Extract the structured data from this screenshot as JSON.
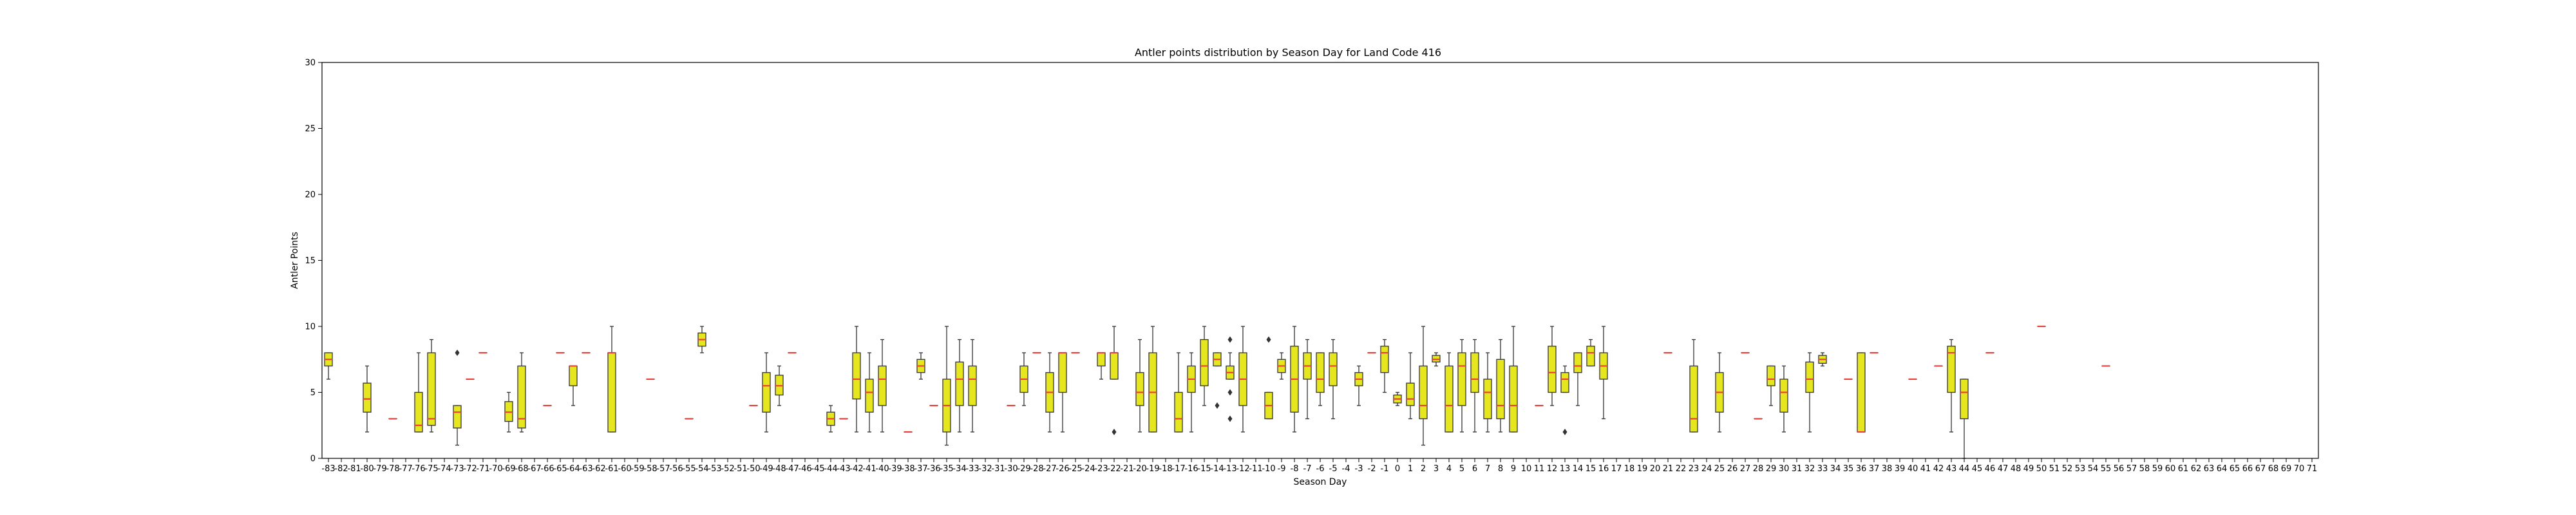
{
  "chart_data": {
    "type": "box",
    "title": "Antler points distribution by Season Day for Land Code 416",
    "xlabel": "Season Day",
    "ylabel": "Antler Points",
    "ylim": [
      0,
      30
    ],
    "yticks": [
      0,
      5,
      10,
      15,
      20,
      25,
      30
    ],
    "grid": false,
    "box_color": "#e6e61f",
    "median_color": "#e8413c",
    "edge_color": "#333333",
    "categories": [
      -83,
      -82,
      -81,
      -80,
      -79,
      -78,
      -77,
      -76,
      -75,
      -74,
      -73,
      -72,
      -71,
      -70,
      -69,
      -68,
      -67,
      -66,
      -65,
      -64,
      -63,
      -62,
      -61,
      -60,
      -59,
      -58,
      -57,
      -56,
      -55,
      -54,
      -53,
      -52,
      -51,
      -50,
      -49,
      -48,
      -47,
      -46,
      -45,
      -44,
      -43,
      -42,
      -41,
      -40,
      -39,
      -38,
      -37,
      -36,
      -35,
      -34,
      -33,
      -32,
      -31,
      -30,
      -29,
      -28,
      -27,
      -26,
      -25,
      -24,
      -23,
      -22,
      -21,
      -20,
      -19,
      -18,
      -17,
      -16,
      -15,
      -14,
      -13,
      -12,
      -11,
      -10,
      -9,
      -8,
      -7,
      -6,
      -5,
      -4,
      -3,
      -2,
      -1,
      0,
      1,
      2,
      3,
      4,
      5,
      6,
      7,
      8,
      9,
      10,
      11,
      12,
      13,
      14,
      15,
      16,
      17,
      18,
      19,
      20,
      21,
      22,
      23,
      24,
      25,
      26,
      27,
      28,
      29,
      30,
      31,
      32,
      33,
      34,
      35,
      36,
      37,
      38,
      39,
      40,
      41,
      42,
      43,
      44,
      45,
      46,
      47,
      48,
      49,
      50,
      51,
      52,
      53,
      54,
      55,
      56,
      57,
      58,
      59,
      60,
      61,
      62,
      63,
      64,
      65,
      66,
      67,
      68,
      69,
      70,
      71
    ],
    "boxes": [
      {
        "day": -83,
        "min": 6,
        "q1": 7,
        "median": 7.5,
        "q3": 8,
        "max": 8
      },
      {
        "day": -80,
        "min": 2,
        "q1": 3.5,
        "median": 4.5,
        "q3": 5.7,
        "max": 7
      },
      {
        "day": -78,
        "min": 3,
        "q1": 3,
        "median": 3,
        "q3": 3,
        "max": 3
      },
      {
        "day": -76,
        "min": 2,
        "q1": 2,
        "median": 2.5,
        "q3": 5,
        "max": 8
      },
      {
        "day": -75,
        "min": 2,
        "q1": 2.5,
        "median": 3,
        "q3": 8,
        "max": 9
      },
      {
        "day": -73,
        "min": 1,
        "q1": 2.3,
        "median": 3.5,
        "q3": 4,
        "max": 4,
        "outliers": [
          8
        ]
      },
      {
        "day": -72,
        "min": 6,
        "q1": 6,
        "median": 6,
        "q3": 6,
        "max": 6
      },
      {
        "day": -71,
        "min": 8,
        "q1": 8,
        "median": 8,
        "q3": 8,
        "max": 8
      },
      {
        "day": -69,
        "min": 2,
        "q1": 2.8,
        "median": 3.5,
        "q3": 4.3,
        "max": 5
      },
      {
        "day": -68,
        "min": 2,
        "q1": 2.3,
        "median": 3,
        "q3": 7,
        "max": 8
      },
      {
        "day": -66,
        "min": 4,
        "q1": 4,
        "median": 4,
        "q3": 4,
        "max": 4
      },
      {
        "day": -65,
        "min": 8,
        "q1": 8,
        "median": 8,
        "q3": 8,
        "max": 8
      },
      {
        "day": -64,
        "min": 4,
        "q1": 5.5,
        "median": 7,
        "q3": 7,
        "max": 7
      },
      {
        "day": -63,
        "min": 8,
        "q1": 8,
        "median": 8,
        "q3": 8,
        "max": 8
      },
      {
        "day": -61,
        "min": 2,
        "q1": 2,
        "median": 8,
        "q3": 8,
        "max": 10
      },
      {
        "day": -58,
        "min": 6,
        "q1": 6,
        "median": 6,
        "q3": 6,
        "max": 6
      },
      {
        "day": -55,
        "min": 3,
        "q1": 3,
        "median": 3,
        "q3": 3,
        "max": 3
      },
      {
        "day": -54,
        "min": 8,
        "q1": 8.5,
        "median": 9,
        "q3": 9.5,
        "max": 10
      },
      {
        "day": -50,
        "min": 4,
        "q1": 4,
        "median": 4,
        "q3": 4,
        "max": 4
      },
      {
        "day": -49,
        "min": 2,
        "q1": 3.5,
        "median": 5.5,
        "q3": 6.5,
        "max": 8
      },
      {
        "day": -48,
        "min": 4,
        "q1": 4.8,
        "median": 5.5,
        "q3": 6.3,
        "max": 7
      },
      {
        "day": -47,
        "min": 8,
        "q1": 8,
        "median": 8,
        "q3": 8,
        "max": 8
      },
      {
        "day": -44,
        "min": 2,
        "q1": 2.5,
        "median": 3,
        "q3": 3.5,
        "max": 4
      },
      {
        "day": -43,
        "min": 3,
        "q1": 3,
        "median": 3,
        "q3": 3,
        "max": 3
      },
      {
        "day": -42,
        "min": 2,
        "q1": 4.5,
        "median": 6,
        "q3": 8,
        "max": 10
      },
      {
        "day": -41,
        "min": 2,
        "q1": 3.5,
        "median": 5,
        "q3": 6,
        "max": 8
      },
      {
        "day": -40,
        "min": 2,
        "q1": 4,
        "median": 6,
        "q3": 7,
        "max": 9
      },
      {
        "day": -38,
        "min": 2,
        "q1": 2,
        "median": 2,
        "q3": 2,
        "max": 2
      },
      {
        "day": -37,
        "min": 6,
        "q1": 6.5,
        "median": 7,
        "q3": 7.5,
        "max": 8
      },
      {
        "day": -36,
        "min": 4,
        "q1": 4,
        "median": 4,
        "q3": 4,
        "max": 4
      },
      {
        "day": -35,
        "min": 1,
        "q1": 2,
        "median": 4,
        "q3": 6,
        "max": 10
      },
      {
        "day": -34,
        "min": 2,
        "q1": 4,
        "median": 6,
        "q3": 7.3,
        "max": 9
      },
      {
        "day": -33,
        "min": 2,
        "q1": 4,
        "median": 6,
        "q3": 7,
        "max": 9
      },
      {
        "day": -30,
        "min": 4,
        "q1": 4,
        "median": 4,
        "q3": 4,
        "max": 4
      },
      {
        "day": -29,
        "min": 4,
        "q1": 5,
        "median": 6,
        "q3": 7,
        "max": 8
      },
      {
        "day": -28,
        "min": 8,
        "q1": 8,
        "median": 8,
        "q3": 8,
        "max": 8
      },
      {
        "day": -27,
        "min": 2,
        "q1": 3.5,
        "median": 5,
        "q3": 6.5,
        "max": 8
      },
      {
        "day": -26,
        "min": 2,
        "q1": 5,
        "median": 8,
        "q3": 8,
        "max": 8
      },
      {
        "day": -25,
        "min": 8,
        "q1": 8,
        "median": 8,
        "q3": 8,
        "max": 8
      },
      {
        "day": -23,
        "min": 6,
        "q1": 7,
        "median": 8,
        "q3": 8,
        "max": 8
      },
      {
        "day": -22,
        "min": 6,
        "q1": 6,
        "median": 8,
        "q3": 8,
        "max": 10,
        "outliers": [
          2
        ]
      },
      {
        "day": -20,
        "min": 2,
        "q1": 4,
        "median": 5,
        "q3": 6.5,
        "max": 9
      },
      {
        "day": -19,
        "min": 2,
        "q1": 2,
        "median": 5,
        "q3": 8,
        "max": 10
      },
      {
        "day": -17,
        "min": 2,
        "q1": 2,
        "median": 3,
        "q3": 5,
        "max": 8
      },
      {
        "day": -16,
        "min": 2,
        "q1": 5,
        "median": 6,
        "q3": 7,
        "max": 8
      },
      {
        "day": -15,
        "min": 4,
        "q1": 5.5,
        "median": 7,
        "q3": 9,
        "max": 10
      },
      {
        "day": -14,
        "min": 7,
        "q1": 7,
        "median": 7.5,
        "q3": 8,
        "max": 8,
        "outliers": [
          4
        ]
      },
      {
        "day": -13,
        "min": 6,
        "q1": 6,
        "median": 6.5,
        "q3": 7,
        "max": 8,
        "outliers": [
          9,
          5,
          3
        ]
      },
      {
        "day": -12,
        "min": 2,
        "q1": 4,
        "median": 6,
        "q3": 8,
        "max": 10
      },
      {
        "day": -10,
        "min": 3,
        "q1": 3,
        "median": 4,
        "q3": 5,
        "max": 5,
        "outliers": [
          9
        ]
      },
      {
        "day": -9,
        "min": 6,
        "q1": 6.5,
        "median": 7,
        "q3": 7.5,
        "max": 8
      },
      {
        "day": -8,
        "min": 2,
        "q1": 3.5,
        "median": 6,
        "q3": 8.5,
        "max": 10
      },
      {
        "day": -7,
        "min": 3,
        "q1": 6,
        "median": 7,
        "q3": 8,
        "max": 9
      },
      {
        "day": -6,
        "min": 4,
        "q1": 5,
        "median": 6,
        "q3": 8,
        "max": 8
      },
      {
        "day": -5,
        "min": 3,
        "q1": 5.5,
        "median": 7,
        "q3": 8,
        "max": 9
      },
      {
        "day": -3,
        "min": 4,
        "q1": 5.5,
        "median": 6,
        "q3": 6.5,
        "max": 7
      },
      {
        "day": -2,
        "min": 8,
        "q1": 8,
        "median": 8,
        "q3": 8,
        "max": 8
      },
      {
        "day": -1,
        "min": 5,
        "q1": 6.5,
        "median": 8,
        "q3": 8.5,
        "max": 9
      },
      {
        "day": 0,
        "min": 4,
        "q1": 4.2,
        "median": 4.5,
        "q3": 4.8,
        "max": 5
      },
      {
        "day": 1,
        "min": 3,
        "q1": 4,
        "median": 4.5,
        "q3": 5.7,
        "max": 8
      },
      {
        "day": 2,
        "min": 1,
        "q1": 3,
        "median": 4,
        "q3": 7,
        "max": 10
      },
      {
        "day": 3,
        "min": 7,
        "q1": 7.3,
        "median": 7.5,
        "q3": 7.8,
        "max": 8
      },
      {
        "day": 4,
        "min": 2,
        "q1": 2,
        "median": 4,
        "q3": 7,
        "max": 8
      },
      {
        "day": 5,
        "min": 2,
        "q1": 4,
        "median": 7,
        "q3": 8,
        "max": 9
      },
      {
        "day": 6,
        "min": 2,
        "q1": 5,
        "median": 6,
        "q3": 8,
        "max": 9
      },
      {
        "day": 7,
        "min": 2,
        "q1": 3,
        "median": 5,
        "q3": 6,
        "max": 8
      },
      {
        "day": 8,
        "min": 2,
        "q1": 3,
        "median": 4,
        "q3": 7.5,
        "max": 9
      },
      {
        "day": 9,
        "min": 2,
        "q1": 2,
        "median": 4,
        "q3": 7,
        "max": 10
      },
      {
        "day": 11,
        "min": 4,
        "q1": 4,
        "median": 4,
        "q3": 4,
        "max": 4
      },
      {
        "day": 12,
        "min": 4,
        "q1": 5,
        "median": 6.5,
        "q3": 8.5,
        "max": 10
      },
      {
        "day": 13,
        "min": 5,
        "q1": 5,
        "median": 6,
        "q3": 6.5,
        "max": 7,
        "outliers": [
          2
        ]
      },
      {
        "day": 14,
        "min": 4,
        "q1": 6.5,
        "median": 7,
        "q3": 8,
        "max": 8
      },
      {
        "day": 15,
        "min": 7,
        "q1": 7,
        "median": 8,
        "q3": 8.5,
        "max": 9
      },
      {
        "day": 16,
        "min": 3,
        "q1": 6,
        "median": 7,
        "q3": 8,
        "max": 10
      },
      {
        "day": 21,
        "min": 8,
        "q1": 8,
        "median": 8,
        "q3": 8,
        "max": 8
      },
      {
        "day": 23,
        "min": 2,
        "q1": 2,
        "median": 3,
        "q3": 7,
        "max": 9
      },
      {
        "day": 25,
        "min": 2,
        "q1": 3.5,
        "median": 5,
        "q3": 6.5,
        "max": 8
      },
      {
        "day": 27,
        "min": 8,
        "q1": 8,
        "median": 8,
        "q3": 8,
        "max": 8
      },
      {
        "day": 28,
        "min": 3,
        "q1": 3,
        "median": 3,
        "q3": 3,
        "max": 3
      },
      {
        "day": 29,
        "min": 4,
        "q1": 5.5,
        "median": 6,
        "q3": 7,
        "max": 7
      },
      {
        "day": 30,
        "min": 2,
        "q1": 3.5,
        "median": 5,
        "q3": 6,
        "max": 7
      },
      {
        "day": 32,
        "min": 2,
        "q1": 5,
        "median": 6,
        "q3": 7.3,
        "max": 8
      },
      {
        "day": 33,
        "min": 7,
        "q1": 7.2,
        "median": 7.5,
        "q3": 7.8,
        "max": 8
      },
      {
        "day": 35,
        "min": 6,
        "q1": 6,
        "median": 6,
        "q3": 6,
        "max": 6
      },
      {
        "day": 36,
        "min": 2,
        "q1": 2,
        "median": 2,
        "q3": 8,
        "max": 8
      },
      {
        "day": 37,
        "min": 8,
        "q1": 8,
        "median": 8,
        "q3": 8,
        "max": 8
      },
      {
        "day": 40,
        "min": 6,
        "q1": 6,
        "median": 6,
        "q3": 6,
        "max": 6
      },
      {
        "day": 42,
        "min": 7,
        "q1": 7,
        "median": 7,
        "q3": 7,
        "max": 7
      },
      {
        "day": 43,
        "min": 2,
        "q1": 5,
        "median": 8,
        "q3": 8.5,
        "max": 9
      },
      {
        "day": 44,
        "min": 0,
        "q1": 3,
        "median": 5,
        "q3": 6,
        "max": 6
      },
      {
        "day": 46,
        "min": 8,
        "q1": 8,
        "median": 8,
        "q3": 8,
        "max": 8
      },
      {
        "day": 50,
        "min": 10,
        "q1": 10,
        "median": 10,
        "q3": 10,
        "max": 10
      },
      {
        "day": 55,
        "min": 7,
        "q1": 7,
        "median": 7,
        "q3": 7,
        "max": 7
      }
    ]
  }
}
